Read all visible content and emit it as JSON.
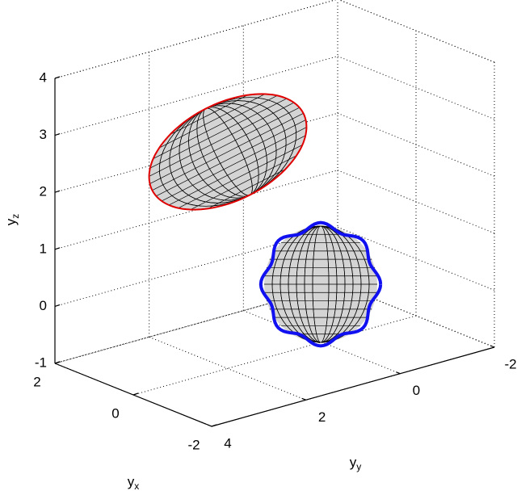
{
  "chart_data": {
    "type": "surface3d",
    "xlabel": [
      "y",
      "x"
    ],
    "ylabel": [
      "y",
      "y"
    ],
    "zlabel": [
      "y",
      "z"
    ],
    "xlim": [
      -2,
      2
    ],
    "ylim": [
      -2,
      4
    ],
    "zlim": [
      -1,
      4
    ],
    "xticks": [
      -2,
      0,
      2
    ],
    "yticks": [
      -2,
      0,
      2,
      4
    ],
    "zticks": [
      -1,
      0,
      1,
      2,
      3,
      4
    ],
    "grid": true
  }
}
